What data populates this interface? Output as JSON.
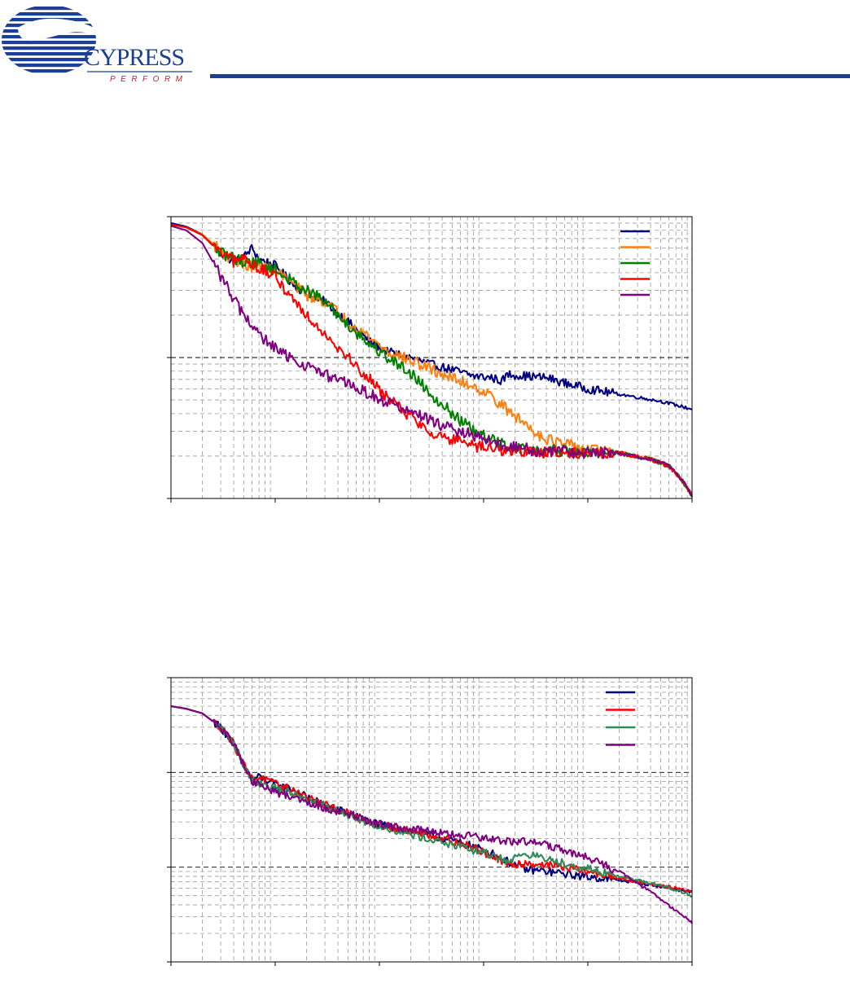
{
  "header": {
    "brand_text": "CYPRESS",
    "tagline_text": "PERFORM",
    "brand_color": "#1b3f94",
    "tagline_color": "#b8232f",
    "rule_color": "#1b3f94"
  },
  "chart_data": [
    {
      "type": "line",
      "x_scale": "log",
      "y_scale": "log",
      "xlim": [
        1,
        100000
      ],
      "ylim": [
        1,
        100
      ],
      "grid": true,
      "legend_position": "top-right",
      "series": [
        {
          "color": "#000080",
          "points": [
            [
              1,
              90
            ],
            [
              1.4,
              85
            ],
            [
              2,
              75
            ],
            [
              3,
              55
            ],
            [
              4,
              48
            ],
            [
              5,
              52
            ],
            [
              6,
              60
            ],
            [
              7,
              50
            ],
            [
              10,
              45
            ],
            [
              15,
              33
            ],
            [
              20,
              28
            ],
            [
              30,
              25
            ],
            [
              50,
              18
            ],
            [
              80,
              13
            ],
            [
              120,
              11
            ],
            [
              200,
              10
            ],
            [
              300,
              9
            ],
            [
              500,
              8.2
            ],
            [
              800,
              7.4
            ],
            [
              1200,
              7.2
            ],
            [
              1500,
              6.8
            ],
            [
              1700,
              7.6
            ],
            [
              2500,
              7.4
            ],
            [
              4000,
              7.2
            ],
            [
              6000,
              6.6
            ],
            [
              10000,
              6.0
            ],
            [
              20000,
              5.5
            ],
            [
              50000,
              4.9
            ],
            [
              100000,
              4.3
            ]
          ]
        },
        {
          "color": "#ff7f0e",
          "points": [
            [
              1,
              88
            ],
            [
              1.4,
              84
            ],
            [
              2,
              75
            ],
            [
              3,
              57
            ],
            [
              5,
              45
            ],
            [
              7,
              44
            ],
            [
              10,
              42
            ],
            [
              15,
              33
            ],
            [
              20,
              28
            ],
            [
              30,
              25
            ],
            [
              50,
              18
            ],
            [
              80,
              14
            ],
            [
              120,
              11
            ],
            [
              200,
              9.5
            ],
            [
              300,
              8.4
            ],
            [
              500,
              7.1
            ],
            [
              800,
              6.3
            ],
            [
              1200,
              5.3
            ],
            [
              1700,
              4.2
            ],
            [
              2500,
              3.4
            ],
            [
              3500,
              2.8
            ],
            [
              5000,
              2.5
            ],
            [
              8000,
              2.3
            ],
            [
              12000,
              2.2
            ],
            [
              20000,
              2.1
            ],
            [
              40000,
              1.9
            ],
            [
              60000,
              1.7
            ],
            [
              80000,
              1.35
            ],
            [
              100000,
              1.05
            ]
          ]
        },
        {
          "color": "#008000",
          "points": [
            [
              1,
              88
            ],
            [
              1.4,
              84
            ],
            [
              2,
              74
            ],
            [
              3,
              55
            ],
            [
              5,
              48
            ],
            [
              7,
              47
            ],
            [
              10,
              42
            ],
            [
              15,
              34
            ],
            [
              20,
              30
            ],
            [
              30,
              25
            ],
            [
              50,
              17
            ],
            [
              80,
              12.5
            ],
            [
              120,
              10
            ],
            [
              200,
              7.8
            ],
            [
              300,
              5.7
            ],
            [
              500,
              4.0
            ],
            [
              800,
              3.0
            ],
            [
              1200,
              2.6
            ],
            [
              1700,
              2.35
            ],
            [
              2500,
              2.25
            ],
            [
              3500,
              2.15
            ],
            [
              5000,
              2.2
            ],
            [
              8000,
              2.1
            ],
            [
              12000,
              2.1
            ],
            [
              20000,
              2.1
            ],
            [
              40000,
              1.9
            ],
            [
              60000,
              1.7
            ],
            [
              80000,
              1.35
            ],
            [
              100000,
              1.05
            ]
          ]
        },
        {
          "color": "#ff0000",
          "points": [
            [
              1,
              88
            ],
            [
              1.4,
              84
            ],
            [
              2,
              74
            ],
            [
              3,
              55
            ],
            [
              4,
              48
            ],
            [
              5,
              51
            ],
            [
              7,
              43
            ],
            [
              10,
              37
            ],
            [
              15,
              26
            ],
            [
              20,
              20
            ],
            [
              30,
              15
            ],
            [
              50,
              10
            ],
            [
              80,
              7
            ],
            [
              120,
              5.2
            ],
            [
              200,
              3.8
            ],
            [
              300,
              3.0
            ],
            [
              500,
              2.6
            ],
            [
              800,
              2.35
            ],
            [
              1200,
              2.25
            ],
            [
              1700,
              2.2
            ],
            [
              2500,
              2.15
            ],
            [
              3500,
              2.12
            ],
            [
              5000,
              2.15
            ],
            [
              8000,
              2.1
            ],
            [
              12000,
              2.1
            ],
            [
              20000,
              2.1
            ],
            [
              40000,
              1.9
            ],
            [
              60000,
              1.7
            ],
            [
              80000,
              1.35
            ],
            [
              100000,
              1.05
            ]
          ]
        },
        {
          "color": "#800080",
          "points": [
            [
              1,
              86
            ],
            [
              1.4,
              80
            ],
            [
              2,
              65
            ],
            [
              3,
              38
            ],
            [
              4,
              26
            ],
            [
              5,
              20
            ],
            [
              7,
              14.5
            ],
            [
              10,
              11.5
            ],
            [
              15,
              9.6
            ],
            [
              20,
              8.8
            ],
            [
              30,
              7.5
            ],
            [
              50,
              6.5
            ],
            [
              80,
              5.5
            ],
            [
              120,
              4.8
            ],
            [
              200,
              4.1
            ],
            [
              300,
              3.6
            ],
            [
              500,
              3.1
            ],
            [
              800,
              2.8
            ],
            [
              1200,
              2.5
            ],
            [
              1700,
              2.35
            ],
            [
              2500,
              2.25
            ],
            [
              3500,
              2.15
            ],
            [
              5000,
              2.2
            ],
            [
              8000,
              2.1
            ],
            [
              12000,
              2.1
            ],
            [
              20000,
              2.1
            ],
            [
              40000,
              1.9
            ],
            [
              60000,
              1.7
            ],
            [
              80000,
              1.35
            ],
            [
              100000,
              1.05
            ]
          ]
        }
      ]
    },
    {
      "type": "line",
      "x_scale": "log",
      "y_scale": "log",
      "xlim": [
        1,
        100000
      ],
      "ylim": [
        1,
        1000
      ],
      "grid": true,
      "legend_position": "top-right",
      "series": [
        {
          "color": "#000080",
          "points": [
            [
              1,
              500
            ],
            [
              1.4,
              470
            ],
            [
              2,
              420
            ],
            [
              3,
              300
            ],
            [
              4,
              200
            ],
            [
              5,
              120
            ],
            [
              6,
              85
            ],
            [
              7,
              90
            ],
            [
              10,
              75
            ],
            [
              15,
              65
            ],
            [
              20,
              55
            ],
            [
              30,
              45
            ],
            [
              50,
              37
            ],
            [
              80,
              30
            ],
            [
              120,
              27
            ],
            [
              200,
              24
            ],
            [
              300,
              22
            ],
            [
              500,
              19
            ],
            [
              800,
              16.5
            ],
            [
              1200,
              14
            ],
            [
              1700,
              11.5
            ],
            [
              2500,
              9.5
            ],
            [
              4000,
              9.0
            ],
            [
              6000,
              8.5
            ],
            [
              10000,
              7.9
            ],
            [
              20000,
              7.3
            ],
            [
              40000,
              6.5
            ],
            [
              70000,
              5.8
            ],
            [
              100000,
              5.5
            ]
          ]
        },
        {
          "color": "#ff0000",
          "points": [
            [
              1,
              500
            ],
            [
              1.4,
              470
            ],
            [
              2,
              420
            ],
            [
              3,
              300
            ],
            [
              4,
              200
            ],
            [
              5,
              120
            ],
            [
              6,
              85
            ],
            [
              7,
              90
            ],
            [
              10,
              75
            ],
            [
              15,
              65
            ],
            [
              20,
              55
            ],
            [
              30,
              45
            ],
            [
              50,
              37
            ],
            [
              80,
              30
            ],
            [
              120,
              27
            ],
            [
              200,
              24
            ],
            [
              300,
              22
            ],
            [
              500,
              19
            ],
            [
              800,
              16
            ],
            [
              1200,
              13
            ],
            [
              1700,
              10.5
            ],
            [
              2500,
              11
            ],
            [
              4000,
              10.6
            ],
            [
              6000,
              10
            ],
            [
              10000,
              9.0
            ],
            [
              20000,
              7.6
            ],
            [
              40000,
              6.6
            ],
            [
              70000,
              6.0
            ],
            [
              100000,
              5.5
            ]
          ]
        },
        {
          "color": "#2e8b57",
          "points": [
            [
              1,
              500
            ],
            [
              1.4,
              470
            ],
            [
              2,
              420
            ],
            [
              3,
              300
            ],
            [
              4,
              200
            ],
            [
              5,
              120
            ],
            [
              6,
              82
            ],
            [
              7,
              78
            ],
            [
              10,
              68
            ],
            [
              15,
              60
            ],
            [
              20,
              52
            ],
            [
              30,
              44
            ],
            [
              50,
              36
            ],
            [
              80,
              29
            ],
            [
              120,
              26
            ],
            [
              200,
              22
            ],
            [
              300,
              20
            ],
            [
              500,
              17
            ],
            [
              800,
              15
            ],
            [
              1200,
              13.5
            ],
            [
              1700,
              11.5
            ],
            [
              2500,
              14
            ],
            [
              4000,
              12.2
            ],
            [
              6000,
              11
            ],
            [
              10000,
              9.6
            ],
            [
              20000,
              8.0
            ],
            [
              40000,
              6.8
            ],
            [
              70000,
              5.8
            ],
            [
              100000,
              5.0
            ]
          ]
        },
        {
          "color": "#800080",
          "points": [
            [
              1,
              500
            ],
            [
              1.4,
              470
            ],
            [
              2,
              420
            ],
            [
              3,
              300
            ],
            [
              4,
              200
            ],
            [
              5,
              120
            ],
            [
              6,
              80
            ],
            [
              7,
              75
            ],
            [
              10,
              62
            ],
            [
              15,
              55
            ],
            [
              20,
              50
            ],
            [
              30,
              42
            ],
            [
              50,
              37
            ],
            [
              80,
              30
            ],
            [
              120,
              27
            ],
            [
              200,
              25
            ],
            [
              300,
              24
            ],
            [
              500,
              22
            ],
            [
              800,
              21
            ],
            [
              1200,
              19.5
            ],
            [
              1700,
              18.5
            ],
            [
              2500,
              19
            ],
            [
              4000,
              17
            ],
            [
              6000,
              15
            ],
            [
              10000,
              12.5
            ],
            [
              20000,
              9
            ],
            [
              40000,
              5.5
            ],
            [
              70000,
              3.5
            ],
            [
              100000,
              2.6
            ]
          ]
        }
      ]
    }
  ]
}
